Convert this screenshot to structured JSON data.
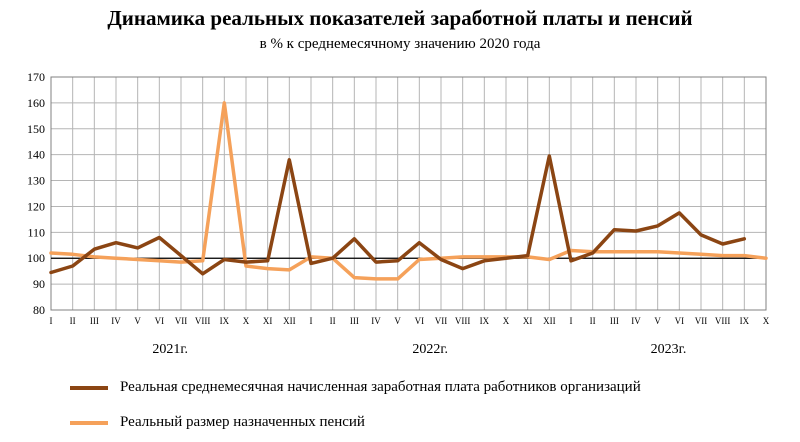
{
  "title": "Динамика реальных показателей заработной платы и пенсий",
  "subtitle": "в % к среднемесячному значению 2020 года",
  "chart_data": {
    "type": "line",
    "title": "Динамика реальных показателей заработной платы и пенсий",
    "subtitle": "в % к среднемесячному значению 2020 года",
    "ylim": [
      80,
      170
    ],
    "yticks": [
      80,
      90,
      100,
      110,
      120,
      130,
      140,
      150,
      160,
      170
    ],
    "categories": [
      "I",
      "II",
      "III",
      "IV",
      "V",
      "VI",
      "VII",
      "VIII",
      "IX",
      "X",
      "XI",
      "XII",
      "I",
      "II",
      "III",
      "IV",
      "V",
      "VI",
      "VII",
      "VIII",
      "IX",
      "X",
      "XI",
      "XII",
      "I",
      "II",
      "III",
      "IV",
      "V",
      "VI",
      "VII",
      "VIII",
      "IX",
      "X"
    ],
    "year_labels": [
      {
        "label": "2021г.",
        "start": 0,
        "end": 11
      },
      {
        "label": "2022г.",
        "start": 12,
        "end": 23
      },
      {
        "label": "2023г.",
        "start": 24,
        "end": 33
      }
    ],
    "grid": true,
    "reference_line": 100,
    "legend_position": "bottom",
    "series": [
      {
        "name": "Реальная среднемесячная начисленная заработная плата работников организаций",
        "color": "#8B4513",
        "values": [
          94.5,
          97,
          103.5,
          106,
          104,
          108,
          101,
          94,
          99.5,
          98.5,
          99,
          138,
          98,
          100,
          107.5,
          98.5,
          99,
          106,
          99.5,
          96,
          99,
          100,
          101,
          139.5,
          99,
          102,
          111,
          110.5,
          112.5,
          117.5,
          109,
          105.5,
          107.5,
          null
        ]
      },
      {
        "name": "Реальный размер назначенных пенсий",
        "color": "#F5A15A",
        "values": [
          102,
          101.5,
          100.5,
          100,
          99.5,
          99,
          98.5,
          99,
          160,
          97,
          96,
          95.5,
          100.5,
          100,
          92.5,
          92,
          92,
          99.5,
          100,
          100.5,
          100.5,
          100.5,
          100.5,
          99.5,
          103,
          102.5,
          102.5,
          102.5,
          102.5,
          102,
          101.5,
          101,
          101,
          100
        ]
      }
    ]
  }
}
